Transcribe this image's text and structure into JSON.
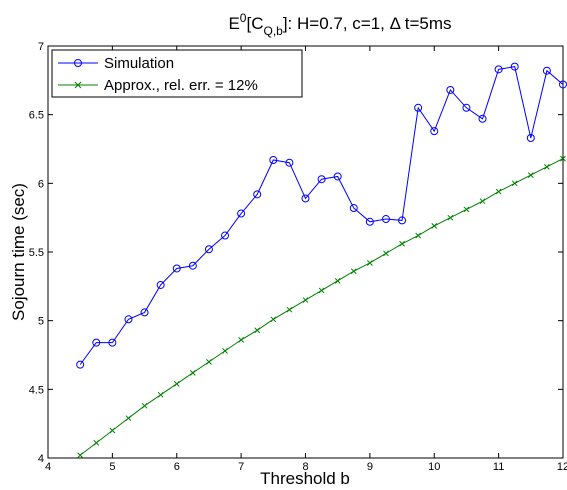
{
  "chart_data": {
    "type": "line",
    "title": {
      "e": "E",
      "sup": "0",
      "bracket_open": "[C",
      "sub": "Q,b",
      "rest": "]: H=0.7, c=1, Δ t=5ms"
    },
    "xlabel": "Threshold b",
    "ylabel": "Sojourn time (sec)",
    "xlim": [
      4,
      12
    ],
    "ylim": [
      4,
      7
    ],
    "xticks": [
      4,
      5,
      6,
      7,
      8,
      9,
      10,
      11,
      12
    ],
    "yticks": [
      4,
      4.5,
      5,
      5.5,
      6,
      6.5,
      7
    ],
    "xtick_labels": [
      "4",
      "5",
      "6",
      "7",
      "8",
      "9",
      "10",
      "11",
      "12"
    ],
    "ytick_labels": [
      "4",
      "4.5",
      "5",
      "5.5",
      "6",
      "6.5",
      "7"
    ],
    "grid": false,
    "legend_position": "top-left",
    "series": [
      {
        "name": "Simulation",
        "color": "#0000ff",
        "marker": "circle",
        "x": [
          4.5,
          4.75,
          5,
          5.25,
          5.5,
          5.75,
          6,
          6.25,
          6.5,
          6.75,
          7,
          7.25,
          7.5,
          7.75,
          8,
          8.25,
          8.5,
          8.75,
          9,
          9.25,
          9.5,
          9.75,
          10,
          10.25,
          10.5,
          10.75,
          11,
          11.25,
          11.5,
          11.75,
          12
        ],
        "y": [
          4.68,
          4.84,
          4.84,
          5.01,
          5.06,
          5.26,
          5.38,
          5.4,
          5.52,
          5.62,
          5.78,
          5.92,
          6.17,
          6.15,
          5.89,
          6.03,
          6.05,
          5.82,
          5.72,
          5.74,
          5.73,
          6.55,
          6.38,
          6.68,
          6.55,
          6.47,
          6.83,
          6.85,
          6.33,
          6.82,
          6.72
        ]
      },
      {
        "name": "Approx., rel. err. = 12%",
        "color": "#008000",
        "marker": "x",
        "x": [
          4.5,
          4.75,
          5,
          5.25,
          5.5,
          5.75,
          6,
          6.25,
          6.5,
          6.75,
          7,
          7.25,
          7.5,
          7.75,
          8,
          8.25,
          8.5,
          8.75,
          9,
          9.25,
          9.5,
          9.75,
          10,
          10.25,
          10.5,
          10.75,
          11,
          11.25,
          11.5,
          11.75,
          12
        ],
        "y": [
          4.02,
          4.11,
          4.2,
          4.29,
          4.38,
          4.46,
          4.54,
          4.62,
          4.7,
          4.78,
          4.86,
          4.93,
          5.01,
          5.08,
          5.15,
          5.22,
          5.29,
          5.36,
          5.42,
          5.49,
          5.56,
          5.62,
          5.69,
          5.75,
          5.81,
          5.87,
          5.94,
          6.0,
          6.06,
          6.12,
          6.18
        ]
      }
    ]
  }
}
